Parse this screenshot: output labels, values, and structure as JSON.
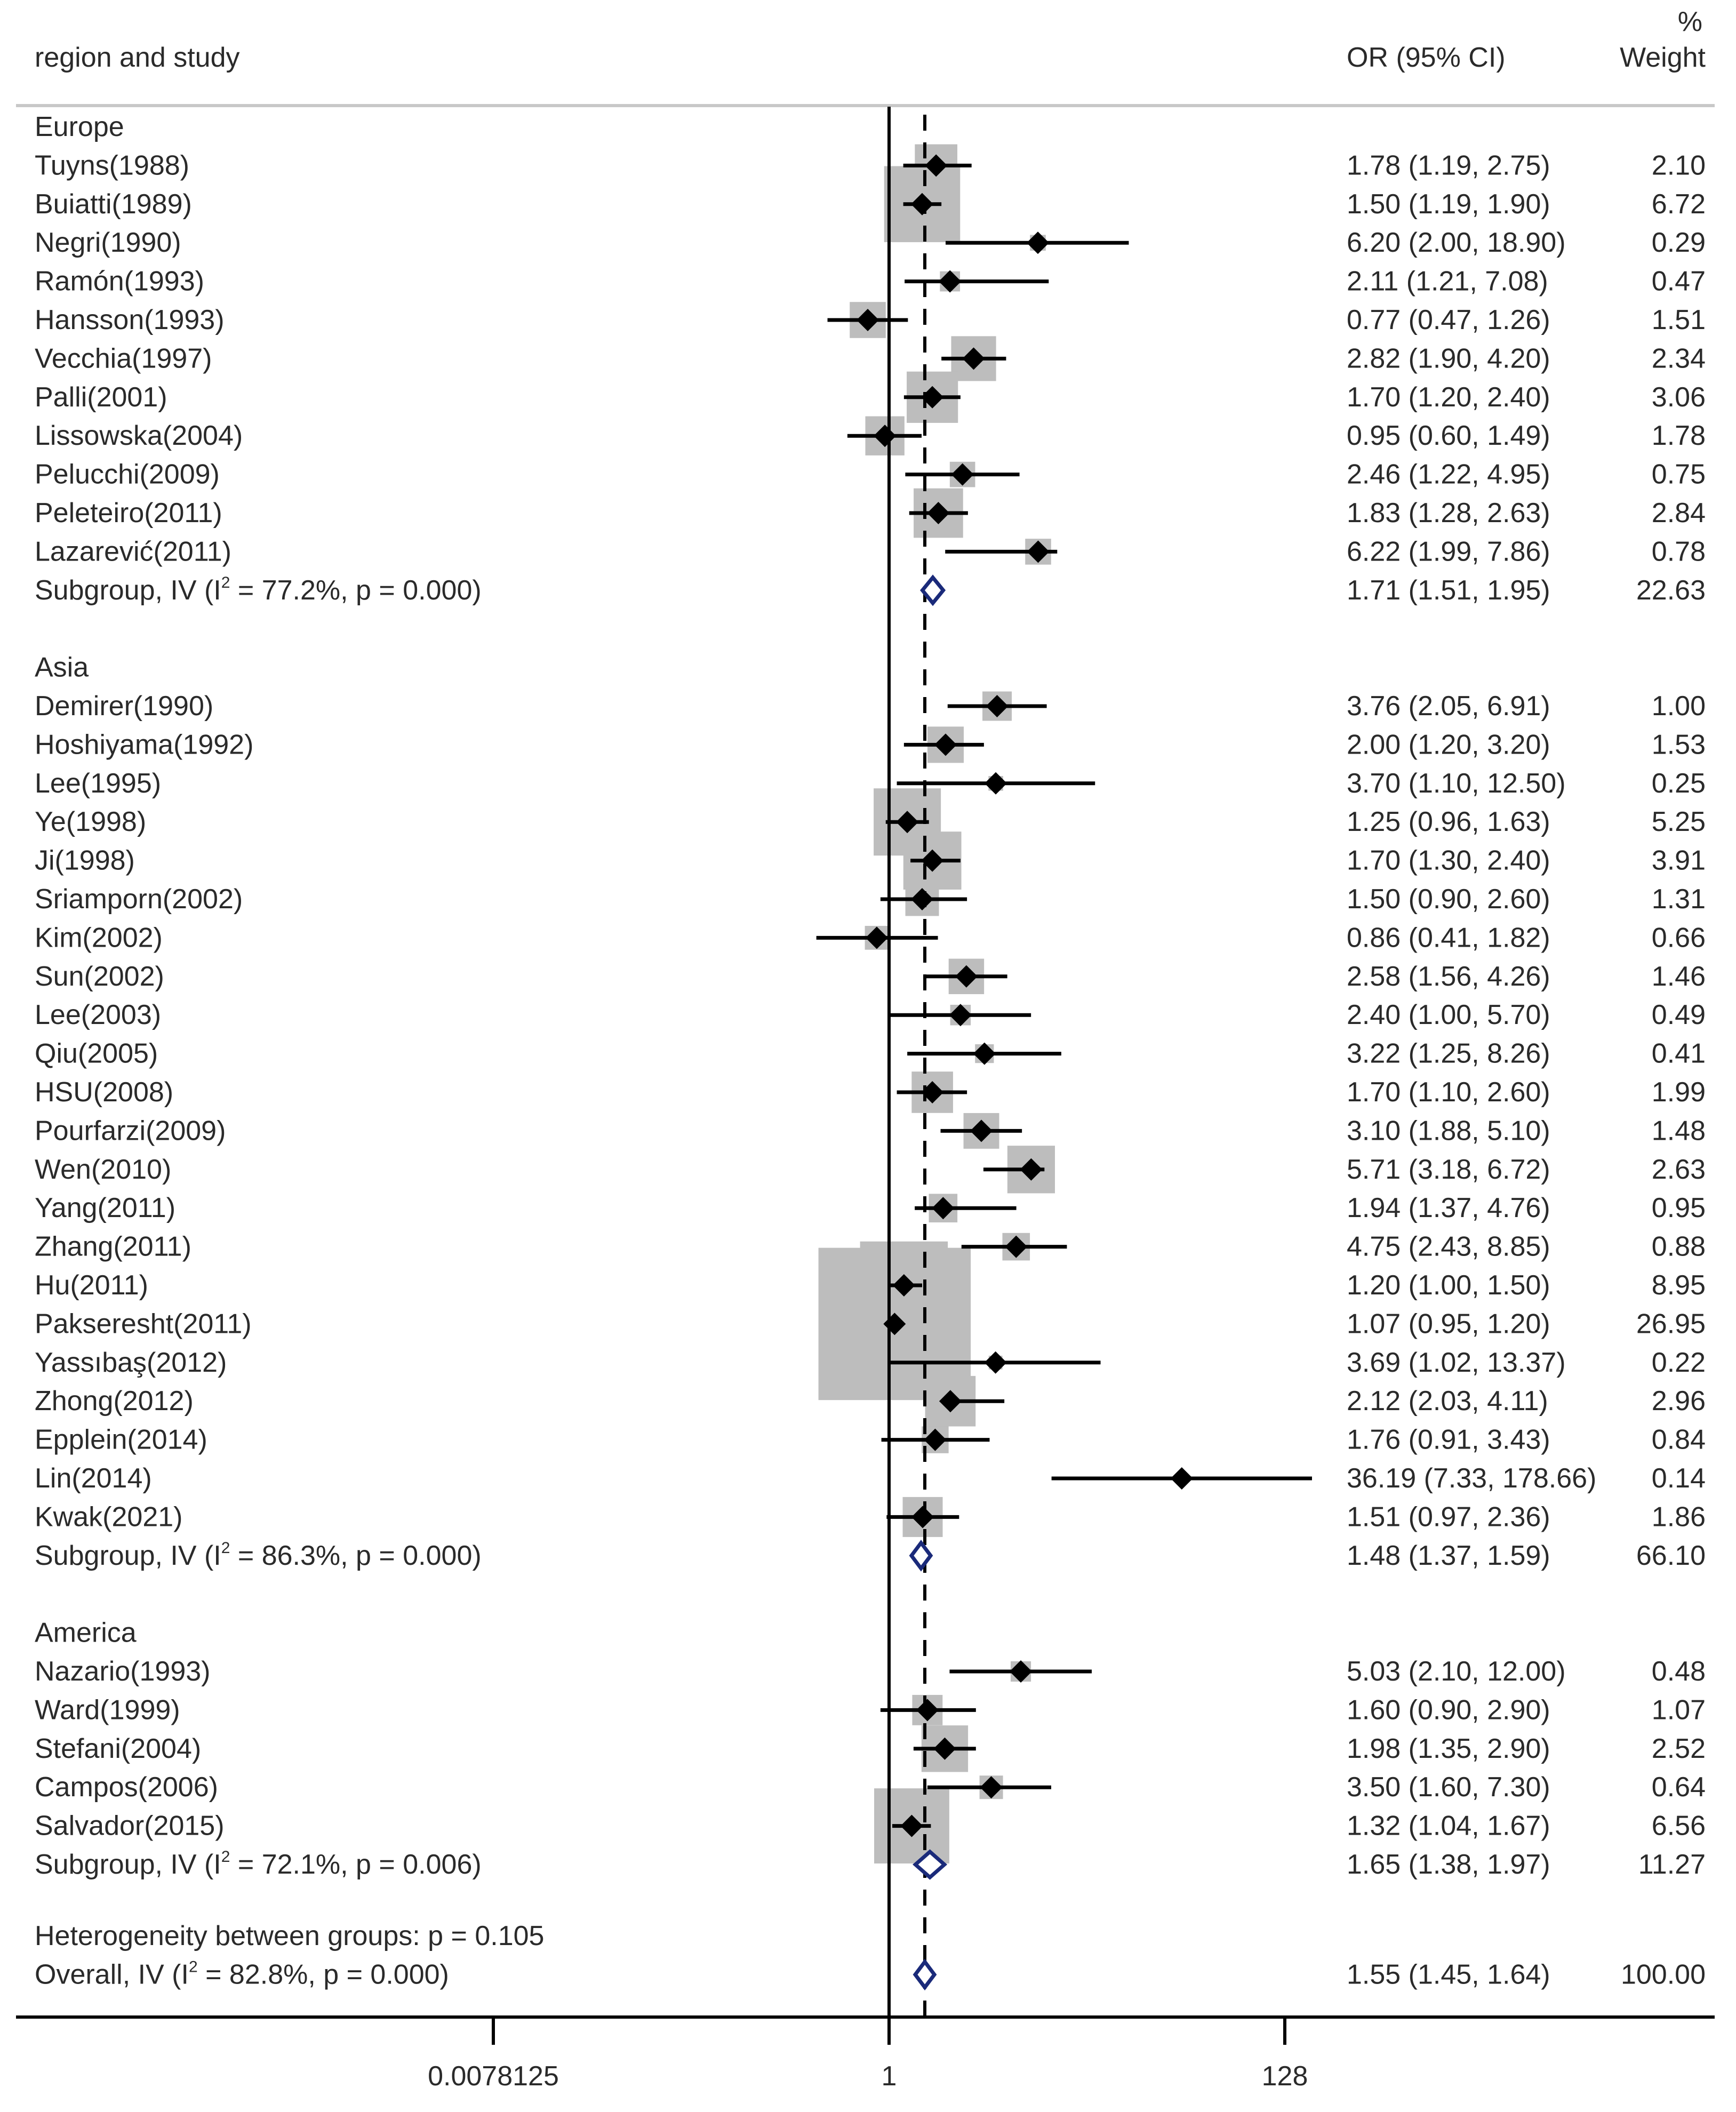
{
  "chart_data": {
    "type": "forest",
    "scale": "log2",
    "null_value": 1,
    "header": {
      "study_col": "region and study",
      "ci_col": "OR (95% CI)",
      "weight_col_line1": "%",
      "weight_col_line2": "Weight"
    },
    "x_ticks": [
      {
        "value": 0.0078125,
        "label": "0.0078125"
      },
      {
        "value": 1,
        "label": "1"
      },
      {
        "value": 128,
        "label": "128"
      }
    ],
    "groups": [
      {
        "name": "Europe",
        "studies": [
          {
            "label": "Tuyns(1988)",
            "or": 1.78,
            "lo": 1.19,
            "hi": 2.75,
            "ci": "1.78 (1.19, 2.75)",
            "weight": "2.10"
          },
          {
            "label": "Buiatti(1989)",
            "or": 1.5,
            "lo": 1.19,
            "hi": 1.9,
            "ci": "1.50 (1.19, 1.90)",
            "weight": "6.72"
          },
          {
            "label": "Negri(1990)",
            "or": 6.2,
            "lo": 2.0,
            "hi": 18.9,
            "ci": "6.20 (2.00, 18.90)",
            "weight": "0.29"
          },
          {
            "label": "Ramón(1993)",
            "or": 2.11,
            "lo": 1.21,
            "hi": 7.08,
            "ci": "2.11 (1.21, 7.08)",
            "weight": "0.47"
          },
          {
            "label": "Hansson(1993)",
            "or": 0.77,
            "lo": 0.47,
            "hi": 1.26,
            "ci": "0.77 (0.47, 1.26)",
            "weight": "1.51"
          },
          {
            "label": "Vecchia(1997)",
            "or": 2.82,
            "lo": 1.9,
            "hi": 4.2,
            "ci": "2.82 (1.90, 4.20)",
            "weight": "2.34"
          },
          {
            "label": "Palli(2001)",
            "or": 1.7,
            "lo": 1.2,
            "hi": 2.4,
            "ci": "1.70 (1.20, 2.40)",
            "weight": "3.06"
          },
          {
            "label": "Lissowska(2004)",
            "or": 0.95,
            "lo": 0.6,
            "hi": 1.49,
            "ci": "0.95 (0.60, 1.49)",
            "weight": "1.78"
          },
          {
            "label": "Pelucchi(2009)",
            "or": 2.46,
            "lo": 1.22,
            "hi": 4.95,
            "ci": "2.46 (1.22, 4.95)",
            "weight": "0.75"
          },
          {
            "label": "Peleteiro(2011)",
            "or": 1.83,
            "lo": 1.28,
            "hi": 2.63,
            "ci": "1.83 (1.28, 2.63)",
            "weight": "2.84"
          },
          {
            "label": "Lazarević(2011)",
            "or": 6.22,
            "lo": 1.99,
            "hi": 7.86,
            "ci": "6.22 (1.99, 7.86)",
            "weight": "0.78"
          }
        ],
        "subgroup": {
          "prefix": "Subgroup, IV (I",
          "sup": "2",
          "suffix": " = 77.2%, p = 0.000)",
          "or": 1.71,
          "lo": 1.51,
          "hi": 1.95,
          "ci": "1.71 (1.51, 1.95)",
          "weight": "22.63"
        }
      },
      {
        "name": "Asia",
        "studies": [
          {
            "label": "Demirer(1990)",
            "or": 3.76,
            "lo": 2.05,
            "hi": 6.91,
            "ci": "3.76 (2.05, 6.91)",
            "weight": "1.00"
          },
          {
            "label": "Hoshiyama(1992)",
            "or": 2.0,
            "lo": 1.2,
            "hi": 3.2,
            "ci": "2.00 (1.20, 3.20)",
            "weight": "1.53"
          },
          {
            "label": "Lee(1995)",
            "or": 3.7,
            "lo": 1.1,
            "hi": 12.5,
            "ci": "3.70 (1.10, 12.50)",
            "weight": "0.25"
          },
          {
            "label": "Ye(1998)",
            "or": 1.25,
            "lo": 0.96,
            "hi": 1.63,
            "ci": "1.25 (0.96, 1.63)",
            "weight": "5.25"
          },
          {
            "label": "Ji(1998)",
            "or": 1.7,
            "lo": 1.3,
            "hi": 2.4,
            "ci": "1.70 (1.30, 2.40)",
            "weight": "3.91"
          },
          {
            "label": "Sriamporn(2002)",
            "or": 1.5,
            "lo": 0.9,
            "hi": 2.6,
            "ci": "1.50 (0.90, 2.60)",
            "weight": "1.31"
          },
          {
            "label": "Kim(2002)",
            "or": 0.86,
            "lo": 0.41,
            "hi": 1.82,
            "ci": "0.86 (0.41, 1.82)",
            "weight": "0.66"
          },
          {
            "label": "Sun(2002)",
            "or": 2.58,
            "lo": 1.56,
            "hi": 4.26,
            "ci": "2.58 (1.56, 4.26)",
            "weight": "1.46"
          },
          {
            "label": "Lee(2003)",
            "or": 2.4,
            "lo": 1.0,
            "hi": 5.7,
            "ci": "2.40 (1.00, 5.70)",
            "weight": "0.49"
          },
          {
            "label": "Qiu(2005)",
            "or": 3.22,
            "lo": 1.25,
            "hi": 8.26,
            "ci": "3.22 (1.25, 8.26)",
            "weight": "0.41"
          },
          {
            "label": "HSU(2008)",
            "or": 1.7,
            "lo": 1.1,
            "hi": 2.6,
            "ci": "1.70 (1.10, 2.60)",
            "weight": "1.99"
          },
          {
            "label": "Pourfarzi(2009)",
            "or": 3.1,
            "lo": 1.88,
            "hi": 5.1,
            "ci": "3.10 (1.88, 5.10)",
            "weight": "1.48"
          },
          {
            "label": "Wen(2010)",
            "or": 5.71,
            "lo": 3.18,
            "hi": 6.72,
            "ci": "5.71 (3.18, 6.72)",
            "weight": "2.63"
          },
          {
            "label": "Yang(2011)",
            "or": 1.94,
            "lo": 1.37,
            "hi": 4.76,
            "ci": "1.94 (1.37, 4.76)",
            "weight": "0.95"
          },
          {
            "label": "Zhang(2011)",
            "or": 4.75,
            "lo": 2.43,
            "hi": 8.85,
            "ci": "4.75 (2.43, 8.85)",
            "weight": "0.88"
          },
          {
            "label": "Hu(2011)",
            "or": 1.2,
            "lo": 1.0,
            "hi": 1.5,
            "ci": "1.20 (1.00, 1.50)",
            "weight": "8.95"
          },
          {
            "label": "Pakseresht(2011)",
            "or": 1.07,
            "lo": 0.95,
            "hi": 1.2,
            "ci": "1.07 (0.95, 1.20)",
            "weight": "26.95"
          },
          {
            "label": "Yassıbaş(2012)",
            "or": 3.69,
            "lo": 1.02,
            "hi": 13.37,
            "ci": "3.69 (1.02, 13.37)",
            "weight": "0.22"
          },
          {
            "label": "Zhong(2012)",
            "or": 2.12,
            "lo": 2.03,
            "hi": 4.11,
            "ci": "2.12 (2.03, 4.11)",
            "weight": "2.96"
          },
          {
            "label": "Epplein(2014)",
            "or": 1.76,
            "lo": 0.91,
            "hi": 3.43,
            "ci": "1.76 (0.91, 3.43)",
            "weight": "0.84"
          },
          {
            "label": "Lin(2014)",
            "or": 36.19,
            "lo": 7.33,
            "hi": 178.66,
            "ci": "36.19 (7.33, 178.66)",
            "weight": "0.14"
          },
          {
            "label": "Kwak(2021)",
            "or": 1.51,
            "lo": 0.97,
            "hi": 2.36,
            "ci": "1.51 (0.97, 2.36)",
            "weight": "1.86"
          }
        ],
        "subgroup": {
          "prefix": "Subgroup, IV (I",
          "sup": "2",
          "suffix": " = 86.3%, p = 0.000)",
          "or": 1.48,
          "lo": 1.37,
          "hi": 1.59,
          "ci": "1.48 (1.37, 1.59)",
          "weight": "66.10"
        }
      },
      {
        "name": "America",
        "studies": [
          {
            "label": "Nazario(1993)",
            "or": 5.03,
            "lo": 2.1,
            "hi": 12.0,
            "ci": "5.03 (2.10, 12.00)",
            "weight": "0.48"
          },
          {
            "label": "Ward(1999)",
            "or": 1.6,
            "lo": 0.9,
            "hi": 2.9,
            "ci": "1.60 (0.90, 2.90)",
            "weight": "1.07"
          },
          {
            "label": "Stefani(2004)",
            "or": 1.98,
            "lo": 1.35,
            "hi": 2.9,
            "ci": "1.98 (1.35, 2.90)",
            "weight": "2.52"
          },
          {
            "label": "Campos(2006)",
            "or": 3.5,
            "lo": 1.6,
            "hi": 7.3,
            "ci": "3.50 (1.60, 7.30)",
            "weight": "0.64"
          },
          {
            "label": "Salvador(2015)",
            "or": 1.32,
            "lo": 1.04,
            "hi": 1.67,
            "ci": "1.32 (1.04, 1.67)",
            "weight": "6.56"
          }
        ],
        "subgroup": {
          "prefix": "Subgroup, IV (I",
          "sup": "2",
          "suffix": " = 72.1%, p = 0.006)",
          "or": 1.65,
          "lo": 1.38,
          "hi": 1.97,
          "ci": "1.65 (1.38, 1.97)",
          "weight": "11.27"
        }
      }
    ],
    "heterogeneity_text": "Heterogeneity between groups: p = 0.105",
    "overall": {
      "prefix": "Overall, IV (I",
      "sup": "2",
      "suffix": " = 82.8%, p = 0.000)",
      "or": 1.55,
      "lo": 1.45,
      "hi": 1.64,
      "ci": "1.55 (1.45, 1.64)",
      "weight": "100.00"
    }
  },
  "colors": {
    "text": "#2a2a2a",
    "marker": "#000000",
    "box": "#bdbdbd",
    "diamond": "#1a2a7a",
    "rule": "#c8c8c8"
  }
}
